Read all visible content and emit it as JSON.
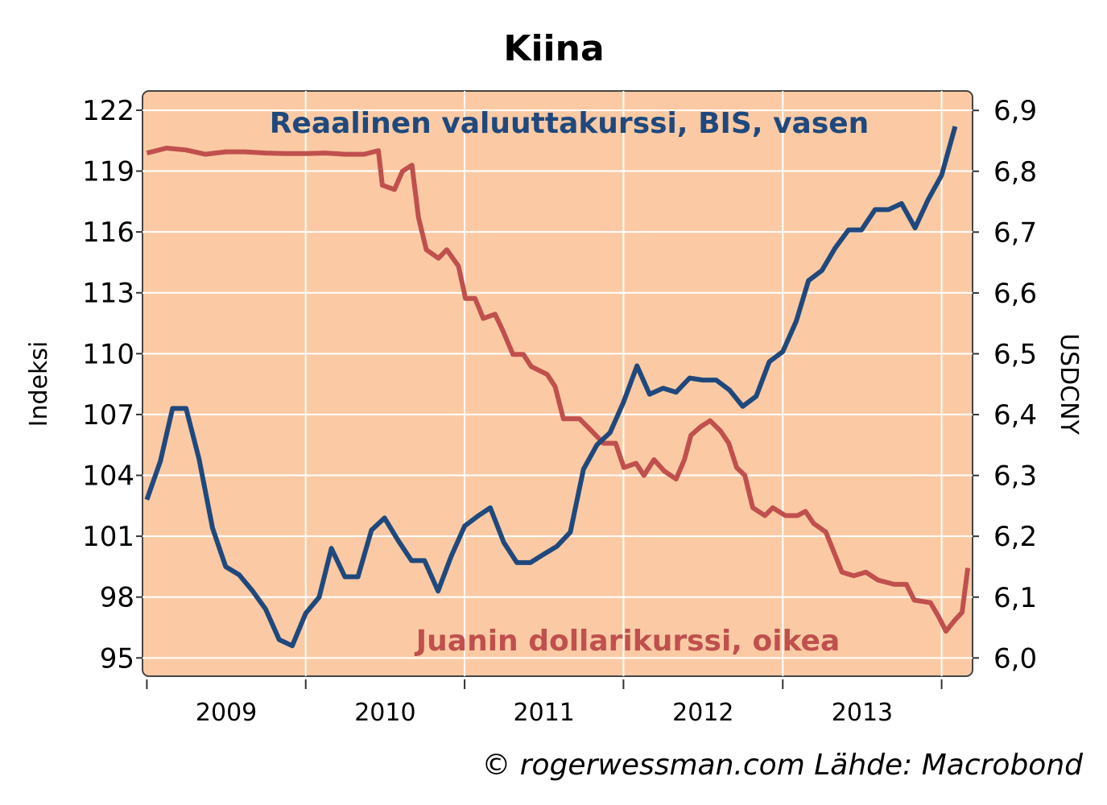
{
  "chart_data": {
    "type": "line",
    "title": "Kiina",
    "ylabel_left": "Indeksi",
    "ylabel_right": "USDCNY",
    "xlabel": "",
    "x_tick_labels": [
      "2009",
      "2010",
      "2011",
      "2012",
      "2013"
    ],
    "y_left_ticks": [
      "95",
      "98",
      "101",
      "104",
      "107",
      "110",
      "113",
      "116",
      "119",
      "122"
    ],
    "y_right_ticks": [
      "6,0",
      "6,1",
      "6,2",
      "6,3",
      "6,4",
      "6,5",
      "6,6",
      "6,7",
      "6,8",
      "6,9"
    ],
    "xlim": [
      "2008-12-22",
      "2014-03-13"
    ],
    "ylim_left": [
      94.1,
      122.95
    ],
    "ylim_right": [
      5.97,
      6.932
    ],
    "grid": true,
    "background_color": "#FBCAA4",
    "source": "© rogerwessman.com Lähde: Macrobond",
    "series": [
      {
        "name": "Reaalinen valuuttakurssi, BIS, vasen",
        "axis": "left",
        "color": "#1F497D",
        "x": [
          "2009-01",
          "2009-02",
          "2009-03",
          "2009-04",
          "2009-05",
          "2009-06",
          "2009-07",
          "2009-08",
          "2009-09",
          "2009-10",
          "2009-11",
          "2009-12",
          "2010-01",
          "2010-02",
          "2010-03",
          "2010-04",
          "2010-05",
          "2010-06",
          "2010-07",
          "2010-08",
          "2010-09",
          "2010-10",
          "2010-11",
          "2010-12",
          "2011-01",
          "2011-02",
          "2011-03",
          "2011-04",
          "2011-05",
          "2011-06",
          "2011-07",
          "2011-08",
          "2011-09",
          "2011-10",
          "2011-11",
          "2011-12",
          "2012-01",
          "2012-02",
          "2012-03",
          "2012-04",
          "2012-05",
          "2012-06",
          "2012-07",
          "2012-08",
          "2012-09",
          "2012-10",
          "2012-11",
          "2012-12",
          "2013-01",
          "2013-02",
          "2013-03",
          "2013-04",
          "2013-05",
          "2013-06",
          "2013-07",
          "2013-08",
          "2013-09",
          "2013-10",
          "2013-11",
          "2013-12",
          "2014-01",
          "2014-02"
        ],
        "values": [
          102.8,
          104.7,
          107.3,
          107.3,
          104.8,
          101.4,
          99.5,
          99.1,
          98.3,
          97.4,
          95.9,
          95.6,
          97.2,
          98.0,
          100.4,
          99.0,
          99.0,
          101.3,
          101.9,
          100.8,
          99.8,
          99.8,
          98.3,
          100.0,
          101.5,
          102.0,
          102.4,
          100.7,
          99.7,
          99.7,
          100.1,
          100.5,
          101.2,
          104.3,
          105.5,
          106.1,
          107.6,
          109.4,
          108.0,
          108.3,
          108.1,
          108.8,
          108.7,
          108.7,
          108.2,
          107.4,
          107.9,
          109.6,
          110.1,
          111.6,
          113.6,
          114.1,
          115.2,
          116.1,
          116.1,
          117.1,
          117.1,
          117.4,
          116.2,
          117.6,
          118.8,
          121.2
        ]
      },
      {
        "name": "Juanin dollarikurssi, oikea",
        "axis": "right",
        "color": "#C0504D",
        "x": [
          "2009-01-01",
          "2009-02-15",
          "2009-04-01",
          "2009-05-15",
          "2009-07-01",
          "2009-08-15",
          "2009-10-01",
          "2009-11-15",
          "2010-01-01",
          "2010-02-15",
          "2010-04-01",
          "2010-05-15",
          "2010-06-17",
          "2010-06-26",
          "2010-07-24",
          "2010-08-11",
          "2010-09-02",
          "2010-09-17",
          "2010-10-05",
          "2010-11-02",
          "2010-11-21",
          "2010-12-18",
          "2011-01-03",
          "2011-01-25",
          "2011-02-13",
          "2011-03-12",
          "2011-03-30",
          "2011-04-22",
          "2011-05-16",
          "2011-06-03",
          "2011-07-10",
          "2011-07-28",
          "2011-08-16",
          "2011-09-22",
          "2011-10-20",
          "2011-11-16",
          "2011-12-14",
          "2012-01-02",
          "2012-01-30",
          "2012-02-17",
          "2012-03-11",
          "2012-04-04",
          "2012-05-01",
          "2012-05-20",
          "2012-06-04",
          "2012-06-26",
          "2012-07-18",
          "2012-08-11",
          "2012-08-30",
          "2012-09-17",
          "2012-10-06",
          "2012-10-24",
          "2012-11-21",
          "2012-12-09",
          "2013-01-07",
          "2013-02-04",
          "2013-02-22",
          "2013-03-13",
          "2013-04-10",
          "2013-04-28",
          "2013-05-17",
          "2013-06-13",
          "2013-07-11",
          "2013-08-08",
          "2013-09-14",
          "2013-10-12",
          "2013-10-30",
          "2013-12-06",
          "2013-12-25",
          "2014-01-11",
          "2014-01-30",
          "2014-02-17",
          "2014-03-02"
        ],
        "values": [
          6.83,
          6.838,
          6.835,
          6.828,
          6.832,
          6.832,
          6.83,
          6.829,
          6.829,
          6.83,
          6.828,
          6.828,
          6.834,
          6.777,
          6.77,
          6.8,
          6.81,
          6.724,
          6.671,
          6.657,
          6.671,
          6.644,
          6.591,
          6.591,
          6.558,
          6.565,
          6.538,
          6.499,
          6.499,
          6.479,
          6.466,
          6.446,
          6.393,
          6.393,
          6.373,
          6.353,
          6.353,
          6.313,
          6.32,
          6.3,
          6.326,
          6.307,
          6.294,
          6.326,
          6.366,
          6.38,
          6.39,
          6.373,
          6.353,
          6.313,
          6.3,
          6.247,
          6.234,
          6.247,
          6.234,
          6.234,
          6.241,
          6.221,
          6.207,
          6.175,
          6.141,
          6.135,
          6.141,
          6.128,
          6.121,
          6.121,
          6.095,
          6.091,
          6.068,
          6.044,
          6.061,
          6.075,
          6.148
        ]
      }
    ]
  }
}
